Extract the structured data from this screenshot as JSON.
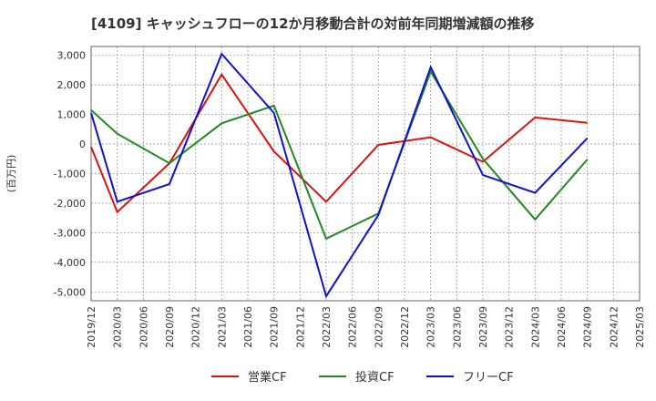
{
  "chart_data": {
    "type": "line",
    "title": "[4109]  キャッシュフローの12か月移動合計の対前年同期増減額の推移",
    "ylabel": "(百万円)",
    "xlabel": "",
    "ylim": [
      -5300,
      3300
    ],
    "yticks": [
      3000,
      2000,
      1000,
      0,
      -1000,
      -2000,
      -3000,
      -4000,
      -5000
    ],
    "ytick_labels": [
      "3,000",
      "2,000",
      "1,000",
      "0",
      "-1,000",
      "-2,000",
      "-3,000",
      "-4,000",
      "-5,000"
    ],
    "categories": [
      "2019/12",
      "2020/03",
      "2020/06",
      "2020/09",
      "2020/12",
      "2021/03",
      "2021/06",
      "2021/09",
      "2021/12",
      "2022/03",
      "2022/06",
      "2022/09",
      "2022/12",
      "2023/03",
      "2023/06",
      "2023/09",
      "2023/12",
      "2024/03",
      "2024/06",
      "2024/09",
      "2024/12",
      "2025/03"
    ],
    "grid": true,
    "legend_position": "bottom",
    "series": [
      {
        "name": "営業CF",
        "color": "#dd1111",
        "values": [
          -100,
          -2300,
          null,
          -650,
          null,
          2350,
          null,
          -250,
          null,
          -1950,
          null,
          -30,
          null,
          230,
          null,
          -600,
          null,
          900,
          null,
          720,
          null,
          null
        ]
      },
      {
        "name": "投資CF",
        "color": "#228822",
        "values": [
          1150,
          350,
          null,
          -650,
          null,
          700,
          null,
          1300,
          null,
          -3200,
          null,
          -2350,
          null,
          2450,
          null,
          -500,
          null,
          -2550,
          null,
          -520,
          null,
          null
        ]
      },
      {
        "name": "フリーCF",
        "color": "#1111cc",
        "values": [
          1050,
          -1950,
          null,
          -1350,
          null,
          3050,
          null,
          1050,
          null,
          -5150,
          null,
          -2400,
          null,
          2600,
          null,
          -1050,
          null,
          -1650,
          null,
          200,
          null,
          null
        ]
      }
    ]
  }
}
